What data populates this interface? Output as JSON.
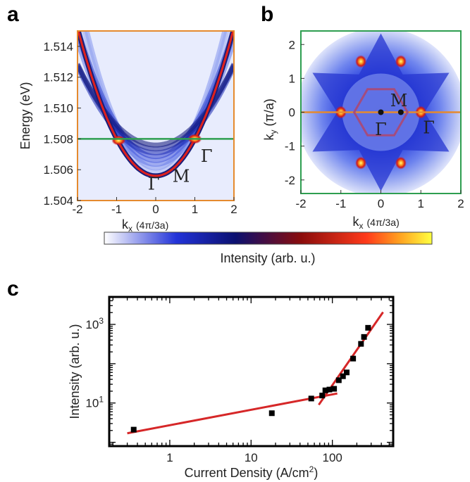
{
  "panel_labels": {
    "a": "a",
    "b": "b",
    "c": "c"
  },
  "colorbar": {
    "label": "Intensity (arb. u.)"
  },
  "colors": {
    "panel_a_frame": "#e58a2e",
    "panel_b_frame": "#2e9e50",
    "green_line": "#2e9e50",
    "orange_line": "#e58a2e",
    "hexagon": "#a44c7e",
    "fit_line": "#d62728",
    "marker": "#000000"
  },
  "chart_data": [
    {
      "id": "a",
      "type": "heatmap",
      "title": "",
      "xlabel": "kx (4π/3a)",
      "xlabel_main": "k",
      "xlabel_sub": "x",
      "xlabel_unit": "(4π/3a)",
      "ylabel": "Energy (eV)",
      "xlim": [
        -2,
        2
      ],
      "ylim": [
        1.504,
        1.515
      ],
      "xticks": [
        -2,
        -1,
        0,
        1,
        2
      ],
      "xtick_labels": [
        "-2",
        "-1",
        "0",
        "1",
        "2"
      ],
      "yticks": [
        1.504,
        1.506,
        1.508,
        1.51,
        1.512,
        1.514
      ],
      "ytick_labels": [
        "1.504",
        "1.506",
        "1.508",
        "1.510",
        "1.512",
        "1.514"
      ],
      "cut_line_energy": 1.508,
      "annotations": [
        {
          "text": "Γ",
          "x": -0.05,
          "y": 1.5047
        },
        {
          "text": "M",
          "x": 0.65,
          "y": 1.5052
        },
        {
          "text": "Γ",
          "x": 1.3,
          "y": 1.5065
        }
      ],
      "bright_spots": [
        {
          "x": -0.95,
          "y": 1.5079
        },
        {
          "x": 1.0,
          "y": 1.508
        }
      ],
      "dispersion_min": {
        "x": 0,
        "y": 1.5056
      }
    },
    {
      "id": "b",
      "type": "heatmap",
      "title": "",
      "xlabel": "kx (4π/3a)",
      "xlabel_main": "k",
      "xlabel_sub": "x",
      "xlabel_unit": "(4π/3a)",
      "ylabel": "ky (π/a)",
      "ylabel_main": "k",
      "ylabel_sub": "y",
      "ylabel_unit": "(π/a)",
      "xlim": [
        -2,
        2
      ],
      "ylim": [
        -2.4,
        2.4
      ],
      "xticks": [
        -2,
        -1,
        0,
        1,
        2
      ],
      "xtick_labels": [
        "-2",
        "-1",
        "0",
        "1",
        "2"
      ],
      "yticks": [
        -2,
        -1,
        0,
        1,
        2
      ],
      "ytick_labels": [
        "-2",
        "-1",
        "0",
        "1",
        "2"
      ],
      "cut_line_ky": 0,
      "hexagon_radius_kx": 0.667,
      "points": [
        {
          "name": "Γ",
          "x": 0,
          "y": 0
        },
        {
          "name": "M",
          "x": 0.5,
          "y": 0
        }
      ],
      "annotations": [
        {
          "text": "M",
          "x": 0.45,
          "y": 0.3
        },
        {
          "text": "Γ",
          "x": 0.0,
          "y": -0.55
        },
        {
          "text": "Γ",
          "x": 1.2,
          "y": -0.5
        }
      ],
      "bright_spots": [
        {
          "x": 1.0,
          "y": 0
        },
        {
          "x": -1.0,
          "y": 0
        },
        {
          "x": 0.5,
          "y": 1.5
        },
        {
          "x": -0.5,
          "y": 1.5
        },
        {
          "x": 0.5,
          "y": -1.5
        },
        {
          "x": -0.5,
          "y": -1.5
        }
      ]
    },
    {
      "id": "c",
      "type": "scatter",
      "title": "",
      "xlabel": "Current Density (A/cm²)",
      "xlabel_main": "Current Density (A/cm",
      "xlabel_sup": "2",
      "xlabel_end": ")",
      "ylabel": "Intensity (arb. u.)",
      "xscale": "log",
      "yscale": "log",
      "xlim": [
        0.18,
        560
      ],
      "ylim": [
        0.8,
        5000
      ],
      "xticks": [
        1,
        10,
        100
      ],
      "xtick_labels": [
        "1",
        "10",
        "100"
      ],
      "yticks": [
        10,
        1000
      ],
      "ytick_base": "10",
      "ytick_exps": [
        "1",
        "3"
      ],
      "points": [
        {
          "x": 0.36,
          "y": 2.1
        },
        {
          "x": 18,
          "y": 5.5
        },
        {
          "x": 55,
          "y": 13
        },
        {
          "x": 75,
          "y": 15.5
        },
        {
          "x": 82,
          "y": 21
        },
        {
          "x": 92,
          "y": 22
        },
        {
          "x": 105,
          "y": 23
        },
        {
          "x": 120,
          "y": 38
        },
        {
          "x": 135,
          "y": 48
        },
        {
          "x": 150,
          "y": 60
        },
        {
          "x": 180,
          "y": 135
        },
        {
          "x": 225,
          "y": 320
        },
        {
          "x": 245,
          "y": 480
        },
        {
          "x": 275,
          "y": 820
        }
      ],
      "fits": [
        {
          "x": [
            0.3,
            115
          ],
          "y": [
            1.7,
            17.5
          ]
        },
        {
          "x": [
            68,
            420
          ],
          "y": [
            9,
            2050
          ]
        }
      ]
    }
  ]
}
